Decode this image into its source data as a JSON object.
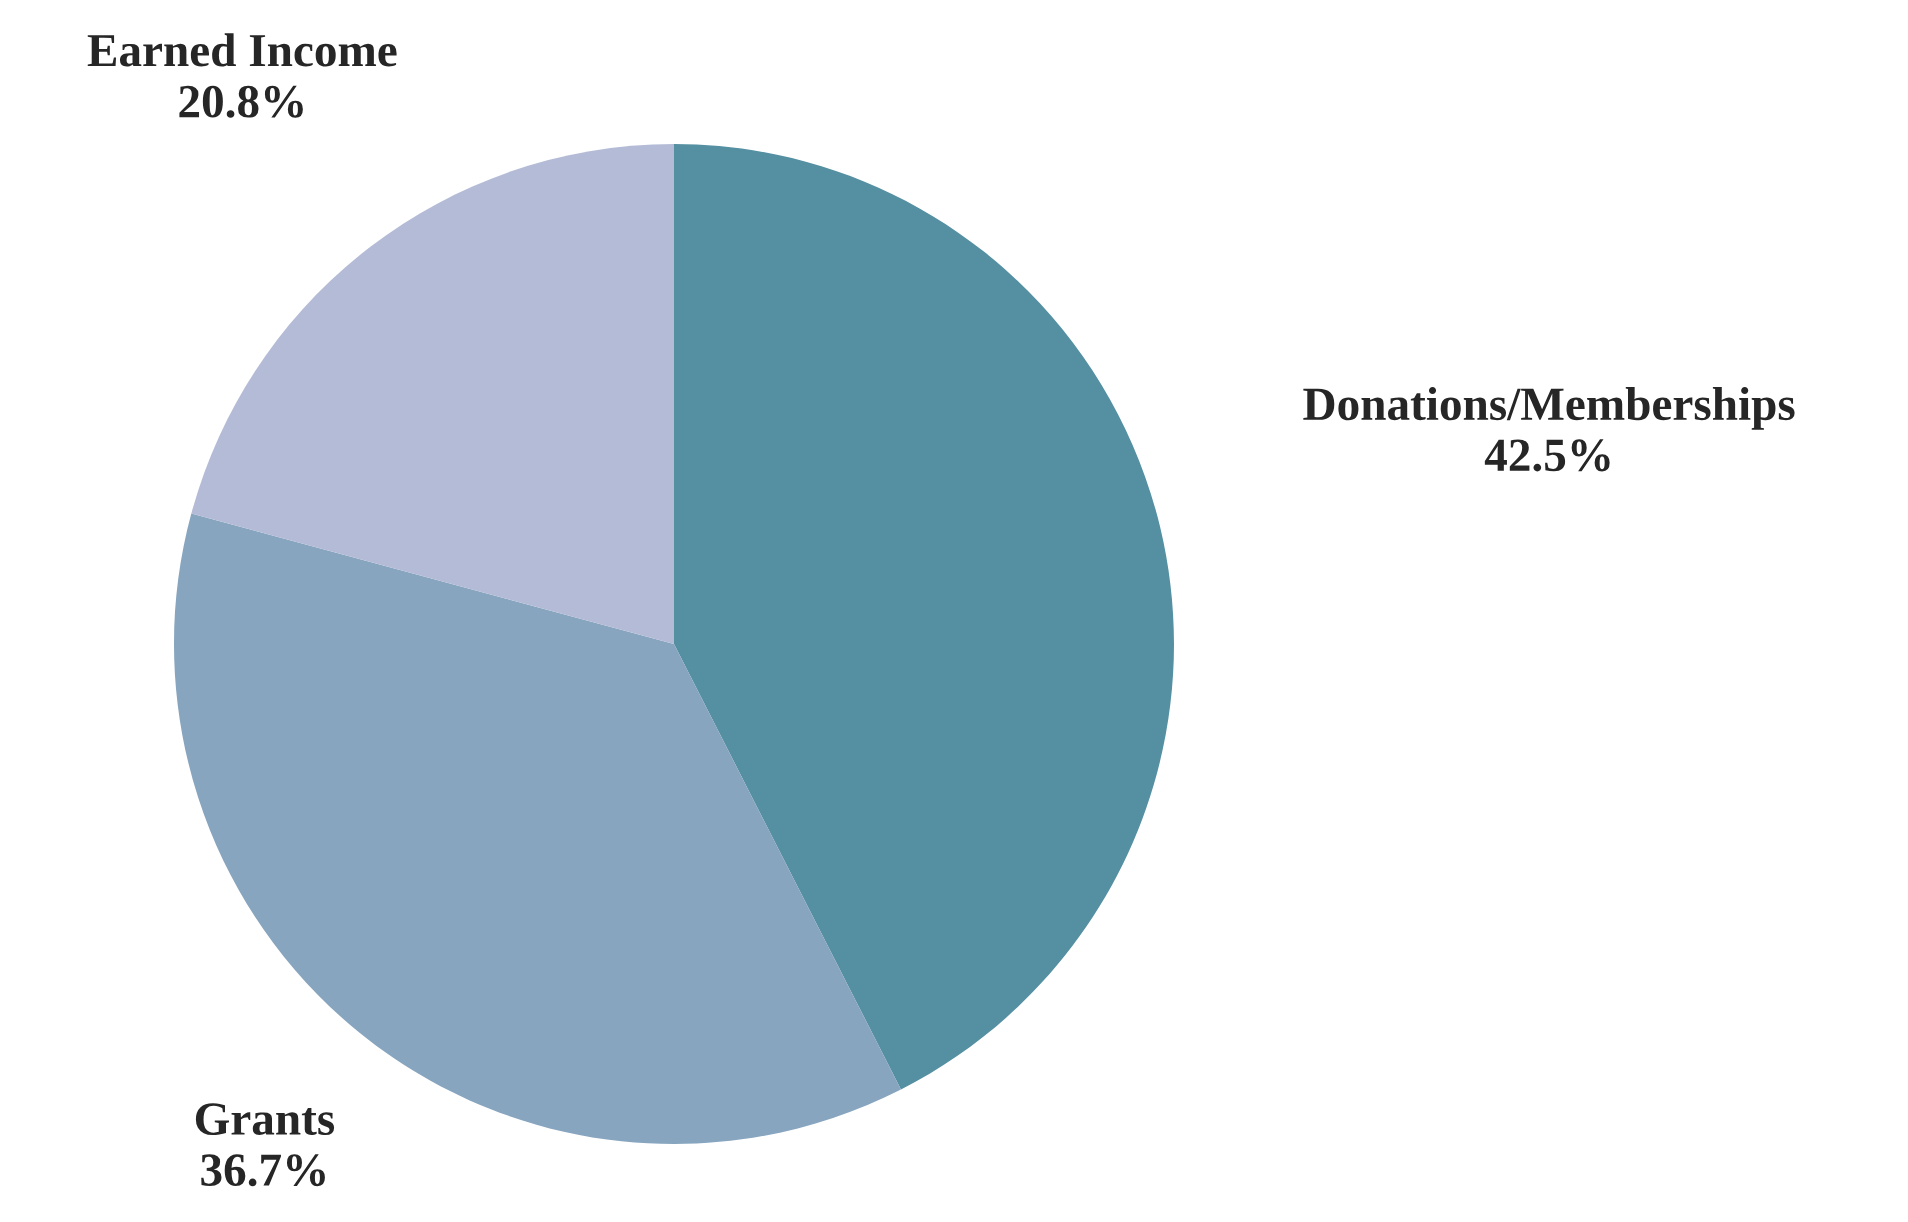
{
  "chart_data": {
    "type": "pie",
    "categories": [
      "Donations/Memberships",
      "Grants",
      "Earned Income"
    ],
    "values": [
      42.5,
      36.7,
      20.8
    ],
    "value_labels": [
      "42.5%",
      "36.7%",
      "20.8%"
    ],
    "colors": [
      "#548fa2",
      "#87a5bf",
      "#b4bbd6"
    ]
  }
}
